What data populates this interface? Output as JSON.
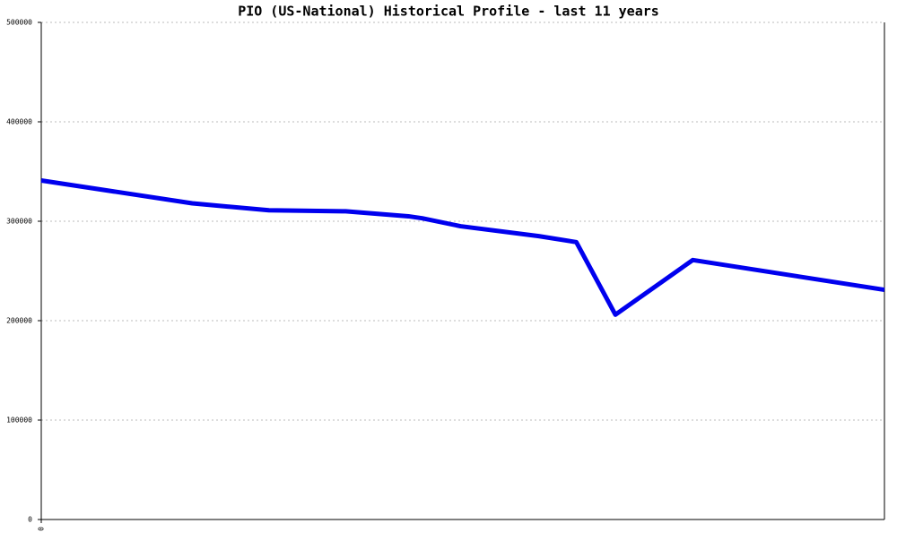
{
  "chart_data": {
    "type": "line",
    "title": "PIO (US-National) Historical Profile - last 11 years",
    "x": [
      0,
      1.97,
      2.97,
      3.97,
      4.79,
      4.97,
      5.47,
      6.49,
      6.98,
      7.49,
      8.5,
      11
    ],
    "series": [
      {
        "color": "#0000ee",
        "values": [
          341000,
          318000,
          311000,
          310000,
          305000,
          303000,
          295000,
          285000,
          279000,
          206000,
          261000,
          231000
        ]
      }
    ],
    "xlim": [
      0,
      11
    ],
    "xticks": [
      0
    ],
    "ylim": [
      0,
      500000
    ],
    "yticks": [
      0,
      100000,
      200000,
      300000,
      400000,
      500000
    ],
    "grid": true
  }
}
